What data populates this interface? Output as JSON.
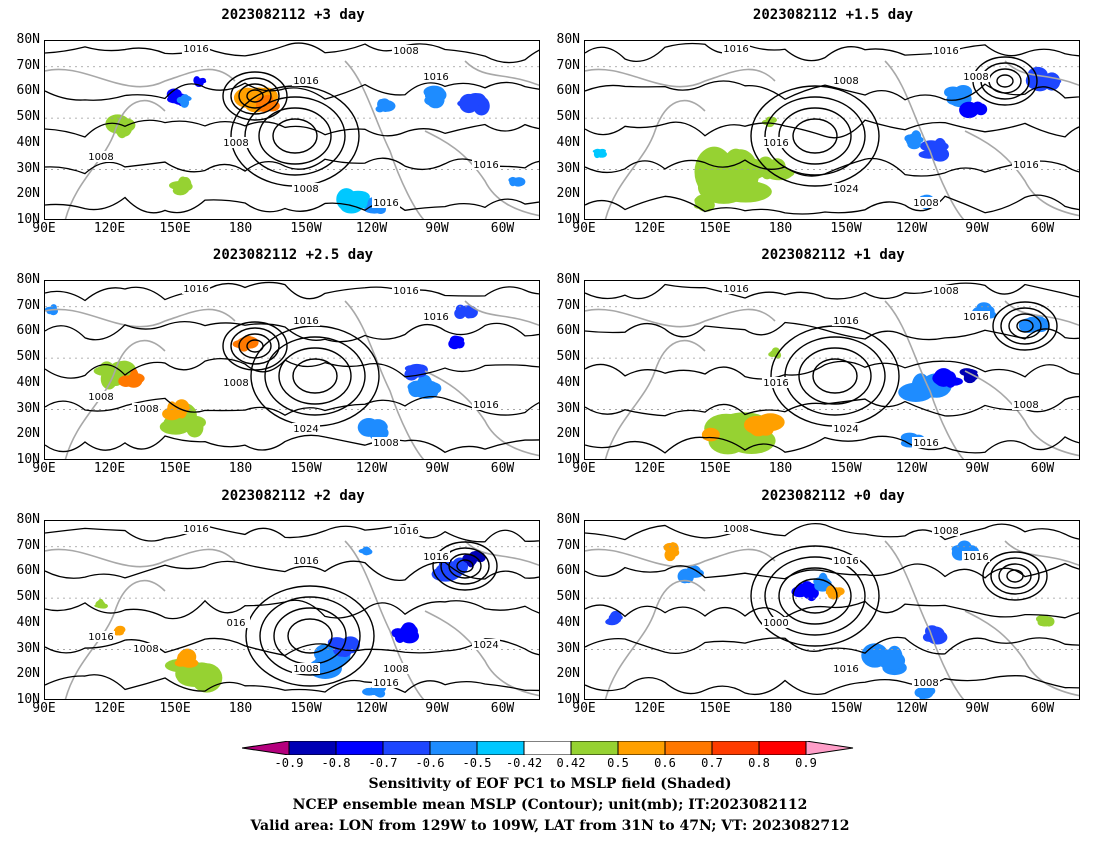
{
  "panels": [
    {
      "title": "2023082112 +3 day",
      "labels": [
        "1016",
        "1008",
        "1016",
        "1016",
        "1008",
        "1008",
        "1016",
        "1016",
        "1008"
      ]
    },
    {
      "title": "2023082112 +1.5 day",
      "labels": [
        "1016",
        "1016",
        "1008",
        "1008",
        "1016",
        "1024",
        "1008",
        "1016"
      ]
    },
    {
      "title": "2023082112 +2.5 day",
      "labels": [
        "1016",
        "1016",
        "1016",
        "1016",
        "1008",
        "1024",
        "1008",
        "1016",
        "1008",
        "1008"
      ]
    },
    {
      "title": "2023082112 +1 day",
      "labels": [
        "1016",
        "1008",
        "1016",
        "1016",
        "1016",
        "1024",
        "1016",
        "1008"
      ]
    },
    {
      "title": "2023082112 +2 day",
      "labels": [
        "1016",
        "1016",
        "1016",
        "1016",
        "016",
        "1008",
        "1016",
        "1024",
        "1016",
        "1008",
        "1008"
      ]
    },
    {
      "title": "2023082112 +0 day",
      "labels": [
        "1008",
        "1008",
        "1016",
        "1016",
        "1000",
        "1016",
        "1008"
      ]
    }
  ],
  "lat_ticks": [
    "80N",
    "70N",
    "60N",
    "50N",
    "40N",
    "30N",
    "20N",
    "10N"
  ],
  "lon_ticks": [
    "90E",
    "120E",
    "150E",
    "180",
    "150W",
    "120W",
    "90W",
    "60W"
  ],
  "colorbar": {
    "labels": [
      "-0.9",
      "-0.8",
      "-0.7",
      "-0.6",
      "-0.5",
      "-0.42",
      "0.42",
      "0.5",
      "0.6",
      "0.7",
      "0.8",
      "0.9"
    ],
    "colors": [
      "#b4007d",
      "#0000b4",
      "#0000ff",
      "#1e46ff",
      "#1e8cff",
      "#00c8ff",
      "#ffffff",
      "#96d232",
      "#ffa000",
      "#ff7800",
      "#ff3c00",
      "#ff0000",
      "#ff9ec8"
    ]
  },
  "captions": [
    "Sensitivity of EOF PC1 to MSLP field (Shaded)",
    "NCEP ensemble mean MSLP (Contour); unit(mb); IT:2023082112",
    "Valid area: LON from 129W to 109W, LAT from 31N to 47N; VT: 2023082712"
  ]
}
